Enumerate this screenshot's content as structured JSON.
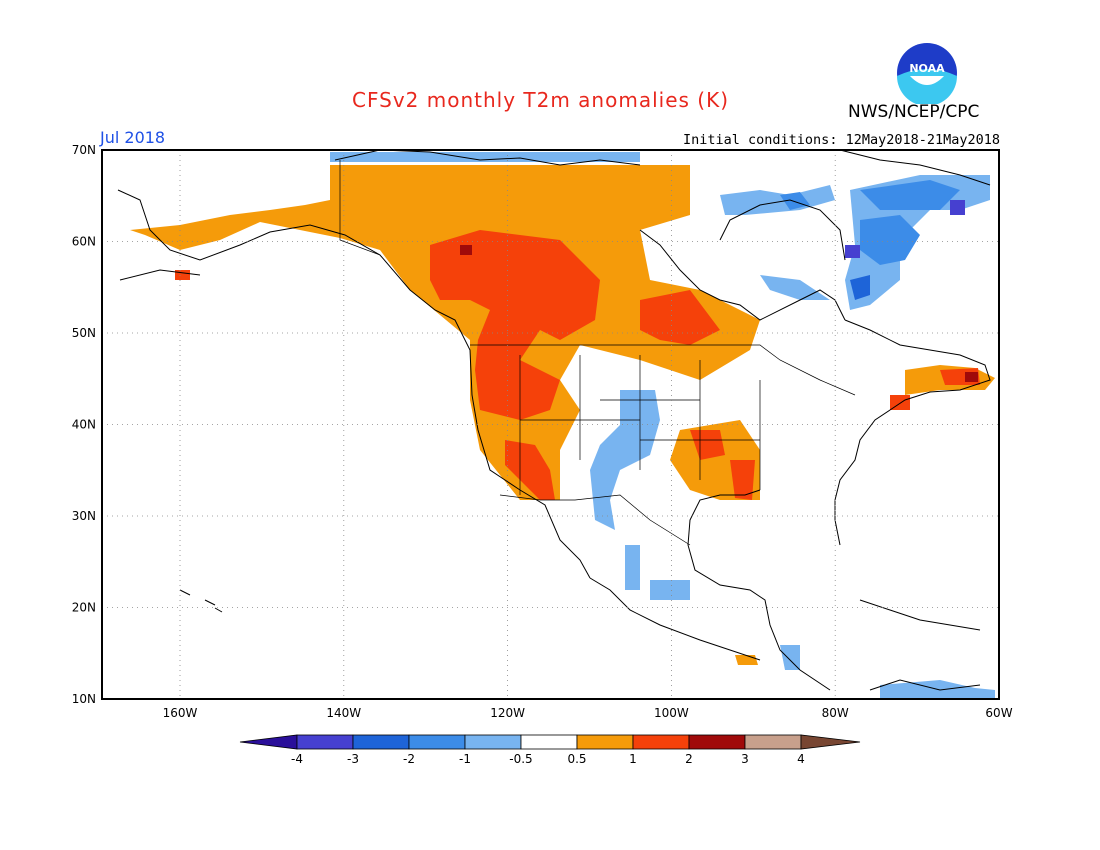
{
  "header": {
    "title": "CFSv2 monthly T2m anomalies (K)",
    "agency": "NWS/NCEP/CPC",
    "month": "Jul 2018",
    "initial_conditions": "Initial conditions: 12May2018-21May2018",
    "logo_text": "NOAA"
  },
  "axes": {
    "lat_labels": [
      "70N",
      "60N",
      "50N",
      "40N",
      "30N",
      "20N",
      "10N"
    ],
    "lon_labels": [
      "160W",
      "140W",
      "120W",
      "100W",
      "80W",
      "60W"
    ]
  },
  "colorbar": {
    "labels": [
      "-4",
      "-3",
      "-2",
      "-1",
      "-0.5",
      "0.5",
      "1",
      "2",
      "3",
      "4"
    ],
    "colors": [
      "#2a0f9a",
      "#4640d0",
      "#1e64d8",
      "#3c8ce8",
      "#78b4f0",
      "#ffffff",
      "#f59b0a",
      "#f5410a",
      "#a00a0a",
      "#c8a08c",
      "#784632"
    ]
  },
  "colors": {
    "coast": "#000000",
    "grid": "#888888"
  }
}
